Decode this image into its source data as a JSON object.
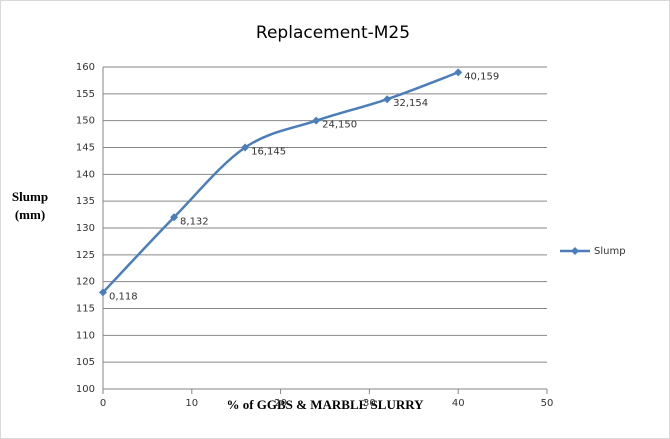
{
  "chart_data": {
    "type": "scatter-line",
    "title": "Replacement-M25",
    "x_label": "% of GGBS  & MARBLE SLURRY",
    "y_label": [
      "Slump",
      "(mm)"
    ],
    "x": [
      0,
      8,
      16,
      24,
      32,
      40
    ],
    "series": [
      {
        "name": "Slump",
        "color": "#4a7ebb",
        "values": [
          118,
          132,
          145,
          150,
          154,
          159
        ],
        "value_labels": [
          "0,118",
          "8,132",
          "16,145",
          "24,150",
          "32,154",
          "40,159"
        ]
      }
    ],
    "xlim": [
      0,
      50
    ],
    "xticks": [
      0,
      10,
      20,
      30,
      40,
      50
    ],
    "ylim": [
      100,
      160
    ],
    "yticks": [
      100,
      105,
      110,
      115,
      120,
      125,
      130,
      135,
      140,
      145,
      150,
      155,
      160
    ],
    "grid": true,
    "legend": "right"
  }
}
